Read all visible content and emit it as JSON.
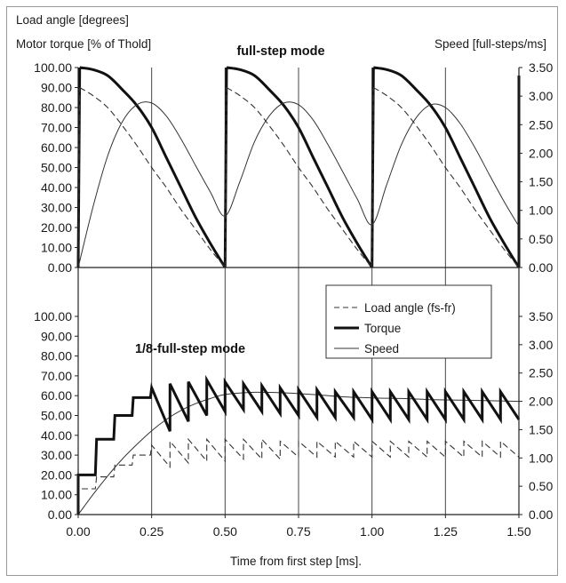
{
  "chart_data": [
    {
      "panel": "top",
      "type": "line",
      "title": "full-step mode",
      "ylabel_left_1": "Load angle [degrees]",
      "ylabel_left_2": "Motor torque [% of Thold]",
      "ylabel_right": "Speed [full-steps/ms]",
      "ylim_left": [
        0,
        100
      ],
      "ylim_right": [
        0,
        3.5
      ],
      "xlim": [
        0,
        1.5
      ],
      "grid_x": [
        0.25,
        0.5,
        0.75,
        1.0,
        1.25
      ],
      "left_ticks": [
        "100.00",
        "90.00",
        "80.00",
        "70.00",
        "60.00",
        "50.00",
        "40.00",
        "30.00",
        "20.00",
        "10.00",
        "0.00"
      ],
      "right_ticks": [
        "3.50",
        "3.00",
        "2.50",
        "2.00",
        "1.50",
        "1.00",
        "0.50",
        "0.00"
      ],
      "series": [
        {
          "name": "Torque",
          "axis": "left",
          "x": [
            0.0,
            0.005,
            0.05,
            0.1,
            0.15,
            0.2,
            0.25,
            0.3,
            0.35,
            0.4,
            0.45,
            0.5,
            0.505,
            0.55,
            0.6,
            0.65,
            0.7,
            0.75,
            0.8,
            0.85,
            0.9,
            0.95,
            1.0,
            1.005,
            1.05,
            1.1,
            1.15,
            1.2,
            1.25,
            1.3,
            1.35,
            1.4,
            1.45,
            1.5,
            1.5
          ],
          "y": [
            0,
            100,
            99,
            96,
            89,
            81,
            70,
            55,
            40,
            25,
            12,
            0,
            100,
            99,
            96,
            89,
            81,
            70,
            55,
            40,
            25,
            12,
            0,
            100,
            99,
            96,
            89,
            81,
            70,
            55,
            40,
            25,
            12,
            0,
            96
          ]
        },
        {
          "name": "Load angle (fs-fr)",
          "axis": "left",
          "x": [
            0.0,
            0.005,
            0.05,
            0.1,
            0.15,
            0.2,
            0.25,
            0.3,
            0.35,
            0.4,
            0.45,
            0.5,
            0.505,
            0.55,
            0.6,
            0.65,
            0.7,
            0.75,
            0.8,
            0.85,
            0.9,
            0.95,
            1.0,
            1.005,
            1.05,
            1.1,
            1.15,
            1.2,
            1.25,
            1.3,
            1.35,
            1.4,
            1.45,
            1.5
          ],
          "y": [
            0,
            90,
            86,
            80,
            71,
            61,
            50,
            40,
            29,
            19,
            9,
            0,
            90,
            86,
            80,
            71,
            61,
            50,
            40,
            29,
            19,
            9,
            0,
            90,
            86,
            80,
            71,
            61,
            50,
            40,
            29,
            19,
            9,
            0
          ]
        },
        {
          "name": "Speed",
          "axis": "right",
          "x": [
            0.0,
            0.05,
            0.1,
            0.15,
            0.2,
            0.25,
            0.3,
            0.35,
            0.4,
            0.45,
            0.5,
            0.55,
            0.6,
            0.65,
            0.7,
            0.75,
            0.8,
            0.85,
            0.9,
            0.95,
            1.0,
            1.05,
            1.1,
            1.15,
            1.2,
            1.25,
            1.3,
            1.35,
            1.4,
            1.45,
            1.5
          ],
          "y": [
            0.0,
            1.05,
            1.95,
            2.55,
            2.85,
            2.88,
            2.65,
            2.25,
            1.78,
            1.32,
            0.9,
            1.5,
            2.2,
            2.65,
            2.88,
            2.85,
            2.58,
            2.15,
            1.68,
            1.2,
            0.75,
            1.45,
            2.15,
            2.62,
            2.85,
            2.8,
            2.52,
            2.1,
            1.62,
            1.15,
            0.72
          ]
        }
      ]
    },
    {
      "panel": "bottom",
      "type": "line",
      "title": "1/8-full-step mode",
      "xlabel": "Time from first step [ms].",
      "xlim": [
        0,
        1.5
      ],
      "ylim_left": [
        0,
        100
      ],
      "ylim_right": [
        0,
        3.5
      ],
      "x_ticks": [
        "0.00",
        "0.25",
        "0.50",
        "0.75",
        "1.00",
        "1.25",
        "1.50"
      ],
      "left_ticks": [
        "100.00",
        "90.00",
        "80.00",
        "70.00",
        "60.00",
        "50.00",
        "40.00",
        "30.00",
        "20.00",
        "10.00",
        "0.00"
      ],
      "right_ticks": [
        "3.50",
        "3.00",
        "2.50",
        "2.00",
        "1.50",
        "1.00",
        "0.50",
        "0.00"
      ],
      "legend": [
        "Load angle (fs-fr)",
        "Torque",
        "Speed"
      ],
      "legend_position": "top-right",
      "series": [
        {
          "name": "Speed",
          "axis": "right",
          "x": [
            0.0,
            0.05,
            0.1,
            0.15,
            0.2,
            0.25,
            0.3,
            0.35,
            0.4,
            0.45,
            0.5,
            0.6,
            0.7,
            0.8,
            0.9,
            1.0,
            1.1,
            1.2,
            1.3,
            1.4,
            1.5
          ],
          "y": [
            0.0,
            0.35,
            0.68,
            0.98,
            1.24,
            1.48,
            1.68,
            1.84,
            1.96,
            2.05,
            2.12,
            2.16,
            2.15,
            2.12,
            2.08,
            2.06,
            2.05,
            2.03,
            2.02,
            2.01,
            2.0
          ]
        },
        {
          "name": "Torque",
          "axis": "left",
          "steps": 24,
          "dt": 0.0625,
          "lows": [
            0,
            12,
            22,
            34,
            42,
            47,
            50,
            52,
            53,
            52,
            51,
            50,
            49,
            49,
            49,
            48,
            48,
            48,
            48,
            48,
            48,
            48,
            48,
            48
          ],
          "highs": [
            20,
            38,
            50,
            59,
            64,
            66,
            67,
            68,
            67,
            66,
            65,
            64,
            63,
            63,
            62,
            62,
            62,
            62,
            62,
            62,
            62,
            62,
            62,
            62
          ]
        },
        {
          "name": "Load angle (fs-fr)",
          "axis": "left",
          "steps": 24,
          "dt": 0.0625,
          "lows": [
            5,
            10,
            15,
            20,
            24,
            26,
            27,
            27,
            28,
            28,
            28,
            29,
            29,
            29,
            29,
            29,
            29,
            29,
            29,
            29,
            29,
            29,
            29,
            29
          ],
          "highs": [
            13,
            19,
            25,
            30,
            35,
            37,
            38,
            38,
            38,
            38,
            38,
            37,
            37,
            37,
            37,
            37,
            37,
            37,
            37,
            37,
            37,
            37,
            37,
            37
          ]
        }
      ]
    }
  ]
}
